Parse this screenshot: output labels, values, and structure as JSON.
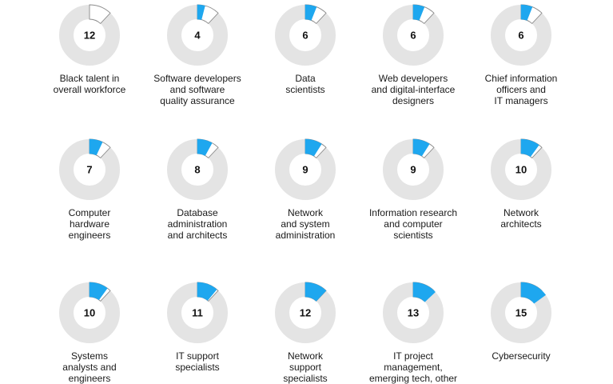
{
  "colors": {
    "track": "#e4e4e4",
    "highlight": "#1ea7ef",
    "reference": "#ffffff",
    "reference_stroke": "#8a8a8a",
    "number": "#111111",
    "label": "#1a1a1a"
  },
  "chart_data": {
    "type": "pie",
    "reference_category": "Black talent in overall workforce",
    "reference_value": 12,
    "unit": "%",
    "items": [
      {
        "label": "Black talent in overall workforce",
        "label_lines": [
          "Black talent in",
          "overall workforce"
        ],
        "value": 12
      },
      {
        "label": "Software developers and software quality assurance",
        "label_lines": [
          "Software developers",
          "and software",
          "quality assurance"
        ],
        "value": 4
      },
      {
        "label": "Data scientists",
        "label_lines": [
          "Data",
          "scientists"
        ],
        "value": 6
      },
      {
        "label": "Web developers and digital-interface designers",
        "label_lines": [
          "Web developers",
          "and digital-interface",
          "designers"
        ],
        "value": 6
      },
      {
        "label": "Chief information officers and IT managers",
        "label_lines": [
          "Chief information",
          "officers and",
          "IT managers"
        ],
        "value": 6
      },
      {
        "label": "Computer hardware engineers",
        "label_lines": [
          "Computer",
          "hardware",
          "engineers"
        ],
        "value": 7
      },
      {
        "label": "Database administration and architects",
        "label_lines": [
          "Database",
          "administration",
          "and architects"
        ],
        "value": 8
      },
      {
        "label": "Network and system administration",
        "label_lines": [
          "Network",
          "and system",
          "administration"
        ],
        "value": 9
      },
      {
        "label": "Information research and computer scientists",
        "label_lines": [
          "Information research",
          "and computer",
          "scientists"
        ],
        "value": 9
      },
      {
        "label": "Network architects",
        "label_lines": [
          "Network",
          "architects"
        ],
        "value": 10
      },
      {
        "label": "Systems analysts and engineers",
        "label_lines": [
          "Systems",
          "analysts and",
          "engineers"
        ],
        "value": 10
      },
      {
        "label": "IT support specialists",
        "label_lines": [
          "IT support",
          "specialists"
        ],
        "value": 11
      },
      {
        "label": "Network support specialists",
        "label_lines": [
          "Network",
          "support",
          "specialists"
        ],
        "value": 12
      },
      {
        "label": "IT project management, emerging tech, other",
        "label_lines": [
          "IT project",
          "management,",
          "emerging tech, other"
        ],
        "value": 13
      },
      {
        "label": "Cybersecurity",
        "label_lines": [
          "Cybersecurity"
        ],
        "value": 15
      }
    ]
  }
}
